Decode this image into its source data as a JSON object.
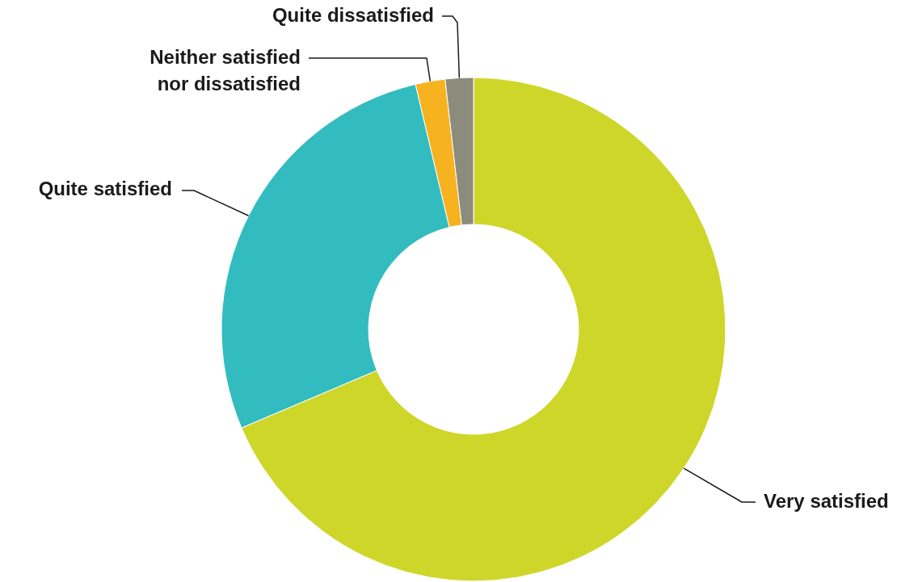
{
  "chart_data": {
    "type": "donut",
    "categories": [
      "Very satisfied",
      "Quite satisfied",
      "Neither satisfied nor dissatisfied",
      "Quite dissatisfied"
    ],
    "values": [
      68.6,
      27.7,
      1.9,
      1.8
    ],
    "colors": [
      "#cfd62a",
      "#33bcbf",
      "#f6b21f",
      "#8c8c7c"
    ]
  }
}
